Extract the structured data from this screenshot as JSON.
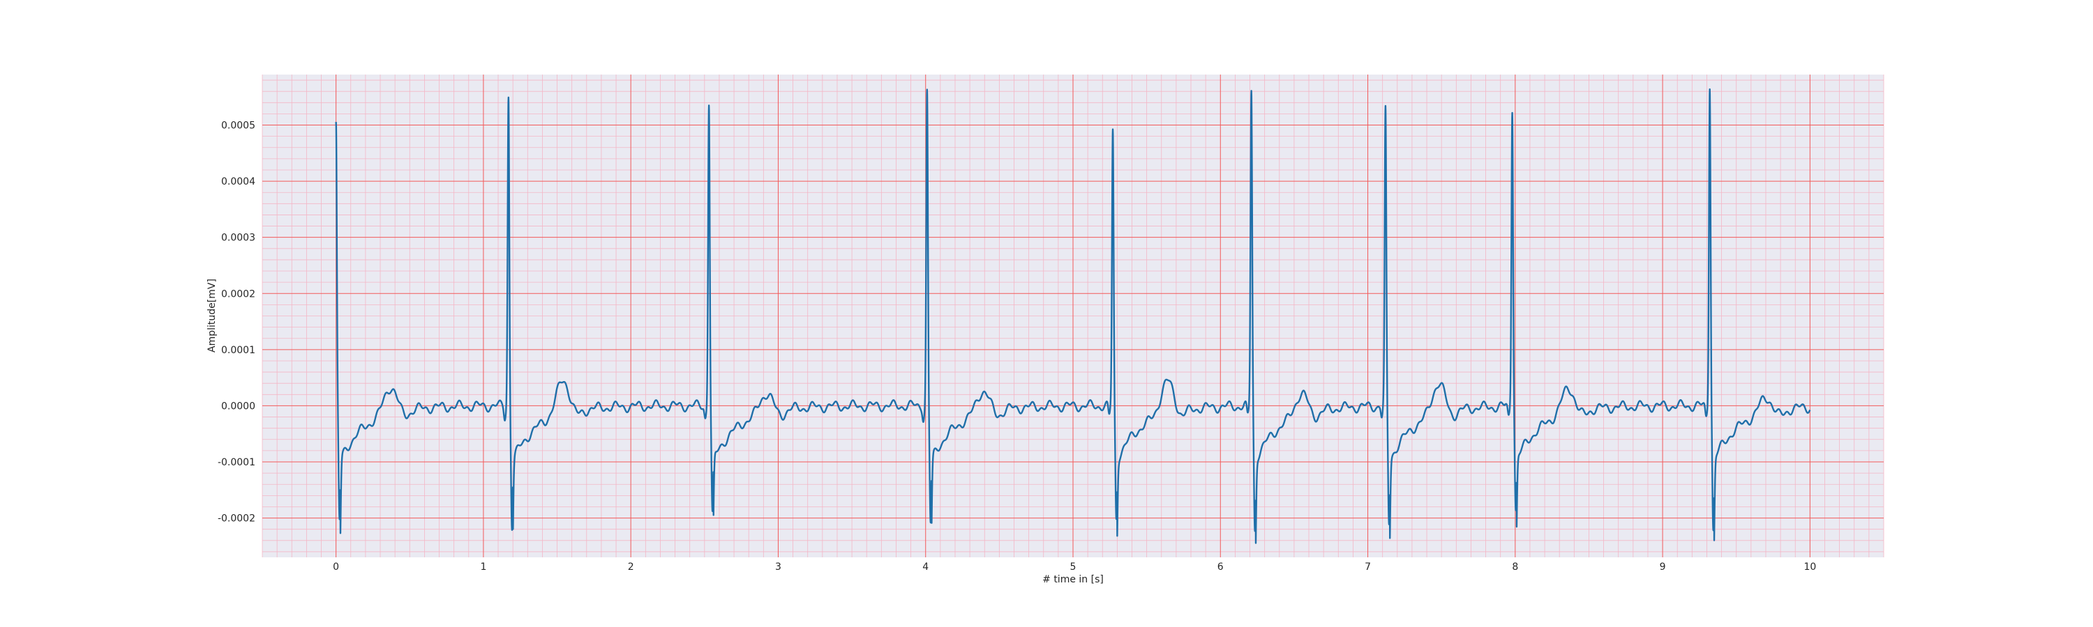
{
  "chart_data": {
    "type": "line",
    "title": "",
    "xlabel": "# time in [s]",
    "ylabel": "Amplitude[mV]",
    "xlim": [
      -0.5,
      10.5
    ],
    "ylim": [
      -0.00027,
      0.00059
    ],
    "x_ticks": [
      0,
      1,
      2,
      3,
      4,
      5,
      6,
      7,
      8,
      9,
      10
    ],
    "x_tick_labels": [
      "0",
      "1",
      "2",
      "3",
      "4",
      "5",
      "6",
      "7",
      "8",
      "9",
      "10"
    ],
    "y_ticks": [
      -0.0002,
      -0.0001,
      0.0,
      0.0001,
      0.0002,
      0.0003,
      0.0004,
      0.0005
    ],
    "y_tick_labels": [
      "-0.0002",
      "-0.0001",
      "0.0000",
      "0.0001",
      "0.0002",
      "0.0003",
      "0.0004",
      "0.0005"
    ],
    "grid": "major and minor",
    "colors": {
      "background": "#eaeaf2",
      "major_grid": "#f25a5a",
      "minor_grid": "#f4b6c6",
      "line": "#1f6fa9"
    },
    "series": [
      {
        "name": "",
        "r_peaks": [
          {
            "t": 0.0,
            "r": 0.00049,
            "s": -0.000215
          },
          {
            "t": 1.17,
            "r": 0.00054,
            "s": -0.000225
          },
          {
            "t": 2.53,
            "r": 0.00053,
            "s": -0.000205
          },
          {
            "t": 4.01,
            "r": 0.000548,
            "s": -0.00022
          },
          {
            "t": 5.27,
            "r": 0.000478,
            "s": -0.00021
          },
          {
            "t": 6.21,
            "r": 0.00055,
            "s": -0.000232
          },
          {
            "t": 7.12,
            "r": 0.000512,
            "s": -0.00022
          },
          {
            "t": 7.98,
            "r": 0.00052,
            "s": -0.000195
          },
          {
            "t": 9.32,
            "r": 0.000562,
            "s": -0.000232
          }
        ],
        "t_waves": [
          {
            "t": 0.37,
            "amp": 4.8e-05
          },
          {
            "t": 1.54,
            "amp": 6e-05
          },
          {
            "t": 2.92,
            "amp": 3.5e-05
          },
          {
            "t": 4.39,
            "amp": 4e-05
          },
          {
            "t": 5.64,
            "amp": 5.8e-05
          },
          {
            "t": 6.55,
            "amp": 3.8e-05
          },
          {
            "t": 7.48,
            "amp": 5.5e-05
          },
          {
            "t": 8.36,
            "amp": 4.5e-05
          },
          {
            "t": 9.7,
            "amp": 2.8e-05
          }
        ],
        "t_end": 10.0
      }
    ]
  }
}
